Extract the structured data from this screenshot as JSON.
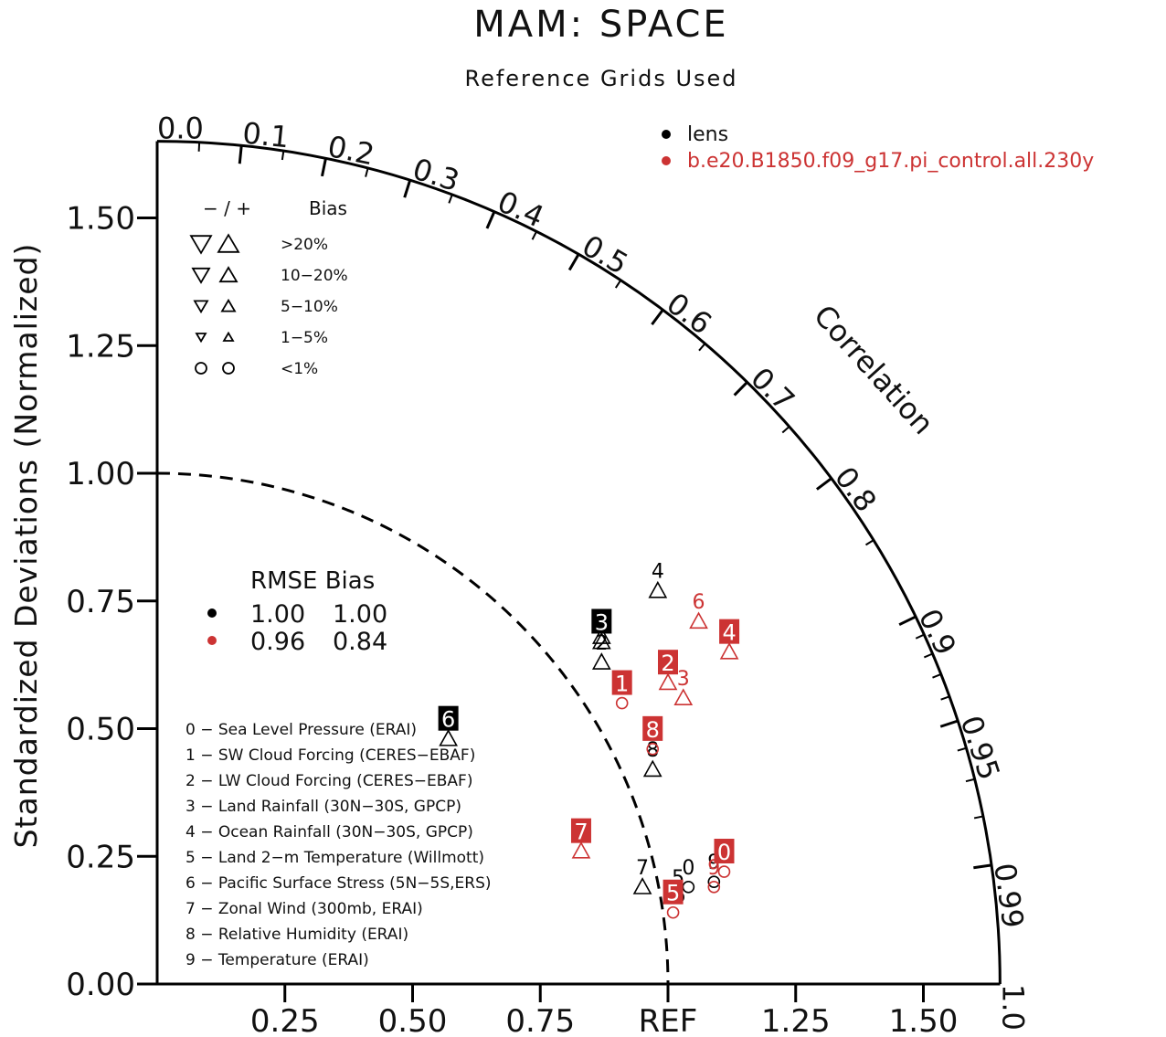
{
  "chart_data": {
    "type": "scatter",
    "subtype": "taylor-diagram",
    "title": "MAM: SPACE",
    "subtitle": "Reference Grids Used",
    "ylabel": "Standardized Deviations (Normalized)",
    "corr_axis_label": "Correlation",
    "std_range": [
      0,
      1.65
    ],
    "std_ticks": [
      "0.00",
      "0.25",
      "0.50",
      "0.75",
      "1.00",
      "1.25",
      "1.50"
    ],
    "x_ticks": [
      "0.25",
      "0.50",
      "0.75",
      "REF",
      "1.25",
      "1.50"
    ],
    "corr_ticks": [
      "0.0",
      "0.1",
      "0.2",
      "0.3",
      "0.4",
      "0.5",
      "0.6",
      "0.7",
      "0.8",
      "0.9",
      "0.95",
      "0.99",
      "1.0"
    ],
    "reference_std": 1.0,
    "series": [
      {
        "name": "lens",
        "color": "#000000",
        "rmse": "1.00",
        "bias": "1.00",
        "points": [
          {
            "id": "0",
            "x": 1.04,
            "y": 0.19,
            "marker": "circle"
          },
          {
            "id": "1",
            "x": 0.87,
            "y": 0.68,
            "marker": "triangle"
          },
          {
            "id": "2",
            "x": 0.87,
            "y": 0.63,
            "marker": "triangle"
          },
          {
            "id": "3",
            "x": 0.87,
            "y": 0.67,
            "marker": "triangle"
          },
          {
            "id": "4",
            "x": 0.98,
            "y": 0.77,
            "marker": "triangle"
          },
          {
            "id": "5",
            "x": 1.02,
            "y": 0.17,
            "marker": "circle"
          },
          {
            "id": "6",
            "x": 0.57,
            "y": 0.48,
            "marker": "triangle"
          },
          {
            "id": "7",
            "x": 0.95,
            "y": 0.19,
            "marker": "triangle"
          },
          {
            "id": "8",
            "x": 0.97,
            "y": 0.42,
            "marker": "triangle"
          },
          {
            "id": "9",
            "x": 1.09,
            "y": 0.2,
            "marker": "circle"
          }
        ]
      },
      {
        "name": "b.e20.B1850.f09_g17.pi_control.all.230y",
        "color": "#cc3333",
        "rmse": "0.96",
        "bias": "0.84",
        "points": [
          {
            "id": "0",
            "x": 1.11,
            "y": 0.22,
            "marker": "circle"
          },
          {
            "id": "1",
            "x": 0.91,
            "y": 0.55,
            "marker": "circle"
          },
          {
            "id": "2",
            "x": 1.0,
            "y": 0.59,
            "marker": "triangle"
          },
          {
            "id": "3",
            "x": 1.03,
            "y": 0.56,
            "marker": "triangle"
          },
          {
            "id": "4",
            "x": 1.12,
            "y": 0.65,
            "marker": "triangle"
          },
          {
            "id": "5",
            "x": 1.01,
            "y": 0.14,
            "marker": "circle"
          },
          {
            "id": "6",
            "x": 1.06,
            "y": 0.71,
            "marker": "triangle"
          },
          {
            "id": "7",
            "x": 0.83,
            "y": 0.26,
            "marker": "triangle"
          },
          {
            "id": "8",
            "x": 0.97,
            "y": 0.46,
            "marker": "circle"
          },
          {
            "id": "9",
            "x": 1.09,
            "y": 0.19,
            "marker": "circle"
          }
        ]
      }
    ]
  },
  "bias_legend": {
    "header_signs": "−  /  +",
    "header_title": "Bias",
    "rows": [
      ">20%",
      "10−20%",
      "5−10%",
      "1−5%",
      "<1%"
    ]
  },
  "rmse_legend": {
    "header": "RMSE Bias"
  },
  "case_list": [
    "0 − Sea Level Pressure (ERAI)",
    "1 − SW Cloud Forcing (CERES−EBAF)",
    "2 − LW Cloud Forcing (CERES−EBAF)",
    "3 − Land Rainfall (30N−30S, GPCP)",
    "4 − Ocean Rainfall (30N−30S, GPCP)",
    "5 − Land 2−m Temperature (Willmott)",
    "6 − Pacific Surface Stress (5N−5S,ERS)",
    "7 − Zonal Wind (300mb, ERAI)",
    "8 − Relative Humidity (ERAI)",
    "9 − Temperature (ERAI)"
  ]
}
